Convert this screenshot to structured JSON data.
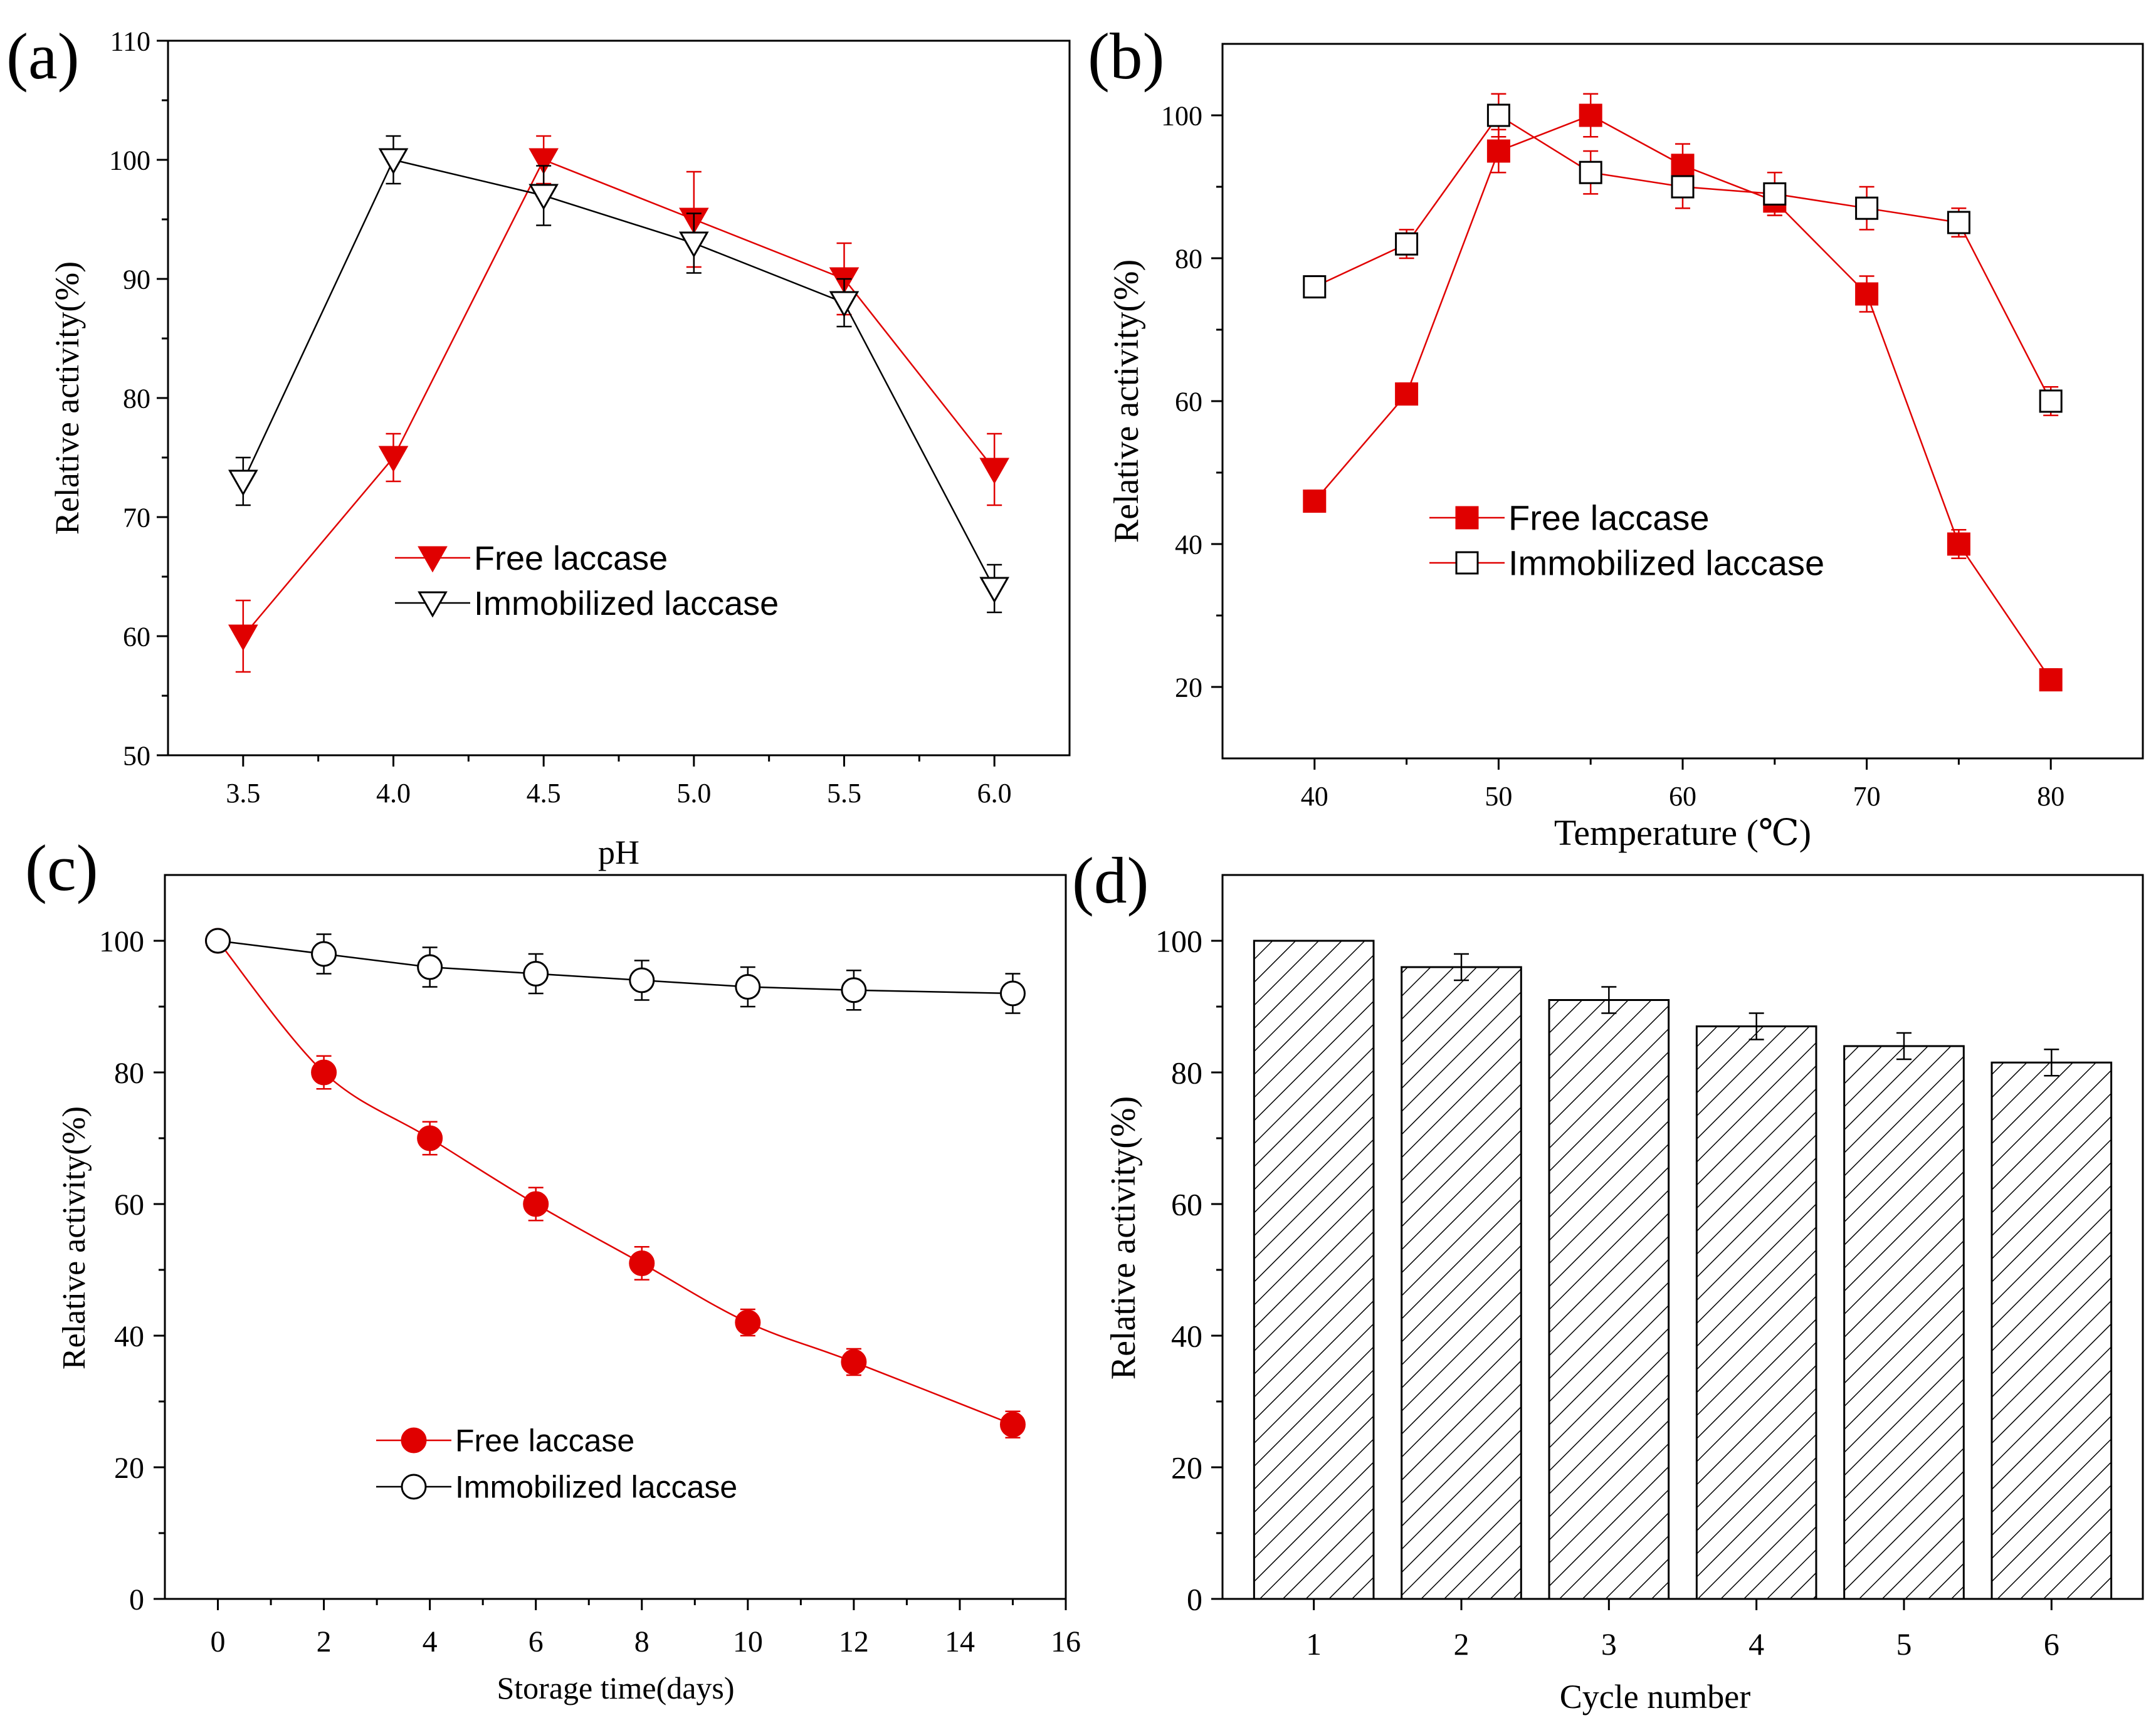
{
  "chart_data": [
    {
      "panel": "(a)",
      "type": "line",
      "xlabel": "pH",
      "ylabel": "Relative activity(%)",
      "x": [
        3.5,
        4.0,
        4.5,
        5.0,
        5.5,
        6.0
      ],
      "xticks": [
        "3.5",
        "4.0",
        "4.5",
        "5.0",
        "5.5",
        "6.0"
      ],
      "xlim": [
        3.25,
        6.25
      ],
      "ylim": [
        50,
        110
      ],
      "yticks": [
        50,
        60,
        70,
        80,
        90,
        100,
        110
      ],
      "series": [
        {
          "name": "Free laccase",
          "color": "#e00000",
          "line": "#e00000",
          "marker": "tri-down-filled",
          "values": [
            60,
            75,
            100,
            95,
            90,
            74
          ],
          "errors": [
            3,
            2,
            2,
            4,
            3,
            3
          ]
        },
        {
          "name": "Immobilized laccase",
          "color": "#000000",
          "line": "#000000",
          "marker": "tri-down-open",
          "values": [
            73,
            100,
            97,
            93,
            88,
            64
          ],
          "errors": [
            2,
            2,
            2.5,
            2.5,
            2,
            2
          ]
        }
      ]
    },
    {
      "panel": "(b)",
      "type": "line",
      "xlabel": "Temperature (℃)",
      "ylabel": "Relative activity(%)",
      "x": [
        40,
        45,
        50,
        55,
        60,
        65,
        70,
        75,
        80
      ],
      "xticks": [
        "40",
        "50",
        "60",
        "70",
        "80"
      ],
      "xlim": [
        35,
        85
      ],
      "ylim": [
        10,
        110
      ],
      "yticks": [
        20,
        40,
        60,
        80,
        100
      ],
      "series": [
        {
          "name": "Free laccase",
          "color": "#e00000",
          "line": "#e00000",
          "marker": "square-filled",
          "values": [
            46,
            61,
            95,
            100,
            93,
            88,
            75,
            40,
            21
          ],
          "errors": [
            1.5,
            1.5,
            3,
            3,
            3,
            2,
            2.5,
            2,
            1.5
          ]
        },
        {
          "name": "Immobilized laccase",
          "color": "#000000",
          "line": "#e00000",
          "marker": "square-open",
          "values": [
            76,
            82,
            100,
            92,
            90,
            89,
            87,
            85,
            60
          ],
          "errors": [
            1.5,
            2,
            3,
            3,
            3,
            3,
            3,
            2,
            2
          ]
        }
      ]
    },
    {
      "panel": "(c)",
      "type": "line",
      "xlabel": "Storage time(days)",
      "ylabel": "Relative activity(%)",
      "x": [
        0,
        2,
        4,
        6,
        8,
        10,
        12,
        15
      ],
      "xticks": [
        "0",
        "2",
        "4",
        "6",
        "8",
        "10",
        "12",
        "14",
        "16"
      ],
      "xlim": [
        -1,
        16
      ],
      "ylim": [
        0,
        110
      ],
      "yticks": [
        0,
        20,
        40,
        60,
        80,
        100
      ],
      "series": [
        {
          "name": "Free laccase",
          "color": "#e00000",
          "line": "#e00000",
          "marker": "circle-filled",
          "values": [
            100,
            80,
            70,
            60,
            51,
            42,
            36,
            26.5
          ],
          "errors": [
            0,
            2.5,
            2.5,
            2.5,
            2.5,
            2,
            2,
            2
          ]
        },
        {
          "name": "Immobilized laccase",
          "color": "#000000",
          "line": "#000000",
          "marker": "circle-open",
          "values": [
            100,
            98,
            96,
            95,
            94,
            93,
            92.5,
            92
          ],
          "errors": [
            0,
            3,
            3,
            3,
            3,
            3,
            3,
            3
          ]
        }
      ]
    },
    {
      "panel": "(d)",
      "type": "bar",
      "xlabel": "Cycle number",
      "ylabel": "Relative activity(%)",
      "categories": [
        "1",
        "2",
        "3",
        "4",
        "5",
        "6"
      ],
      "values": [
        100,
        96,
        91,
        87,
        84,
        81.5
      ],
      "errors": [
        0,
        2,
        2,
        2,
        2,
        2
      ],
      "ylim": [
        0,
        110
      ],
      "yticks": [
        0,
        20,
        40,
        60,
        80,
        100
      ],
      "fill": "hatched"
    }
  ]
}
